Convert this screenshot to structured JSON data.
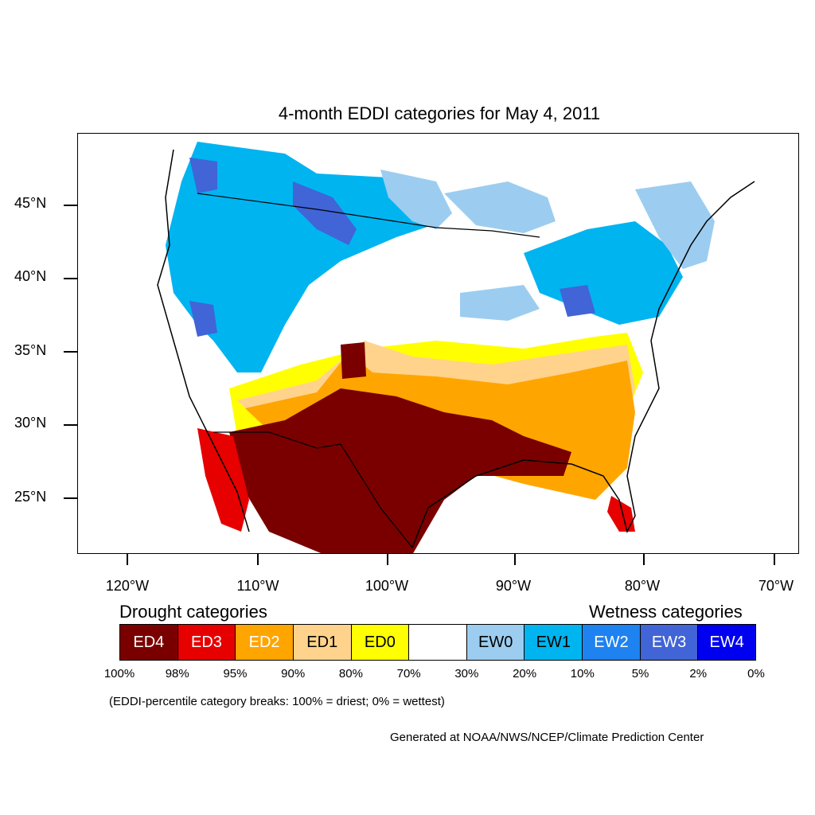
{
  "title": "4-month EDDI categories for May 4, 2011",
  "axes": {
    "lat_labels": [
      "45°N",
      "40°N",
      "35°N",
      "30°N",
      "25°N"
    ],
    "lon_labels": [
      "120°W",
      "110°W",
      "100°W",
      "90°W",
      "80°W",
      "70°W"
    ]
  },
  "legend": {
    "drought_heading": "Drought categories",
    "wetness_heading": "Wetness categories",
    "categories": [
      {
        "label": "ED4",
        "color": "#7a0000",
        "text_color": "#ffffff"
      },
      {
        "label": "ED3",
        "color": "#e60000",
        "text_color": "#ffffff"
      },
      {
        "label": "ED2",
        "color": "#ffa500",
        "text_color": "#ffffff"
      },
      {
        "label": "ED1",
        "color": "#ffd38c",
        "text_color": "#000000"
      },
      {
        "label": "ED0",
        "color": "#ffff00",
        "text_color": "#000000"
      },
      {
        "label": "",
        "color": "#ffffff",
        "text_color": "#000000"
      },
      {
        "label": "EW0",
        "color": "#9ccdf0",
        "text_color": "#000000"
      },
      {
        "label": "EW1",
        "color": "#00b4f0",
        "text_color": "#000000"
      },
      {
        "label": "EW2",
        "color": "#1e82f0",
        "text_color": "#ffffff"
      },
      {
        "label": "EW3",
        "color": "#4164d7",
        "text_color": "#ffffff"
      },
      {
        "label": "EW4",
        "color": "#0000f0",
        "text_color": "#ffffff"
      }
    ],
    "breaks": [
      "100%",
      "98%",
      "95%",
      "90%",
      "80%",
      "70%",
      "30%",
      "20%",
      "10%",
      "5%",
      "2%",
      "0%"
    ]
  },
  "note": "(EDDI-percentile category breaks: 100% = driest; 0% = wettest)",
  "credit": "Generated at NOAA/NWS/NCEP/Climate Prediction Center"
}
